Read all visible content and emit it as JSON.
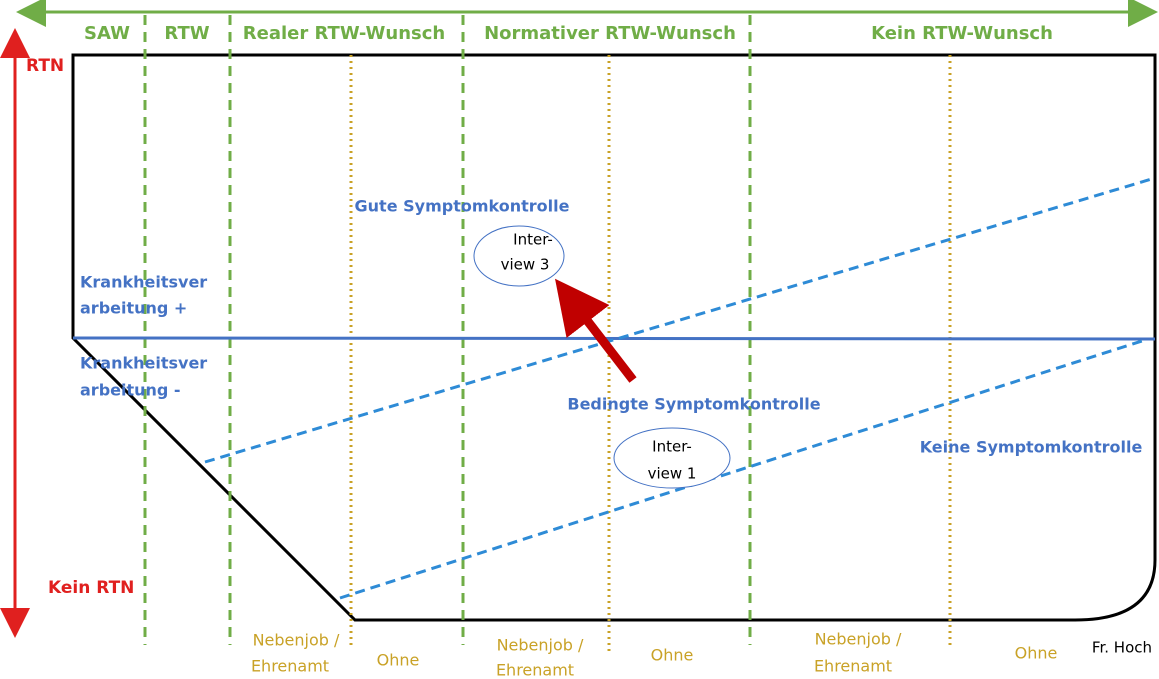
{
  "columns": [
    "SAW",
    "RTW",
    "Realer RTW-Wunsch",
    "Normativer RTW-Wunsch",
    "Kein RTW-Wunsch"
  ],
  "axis": {
    "top": "RTN",
    "bottom": "Kein RTN"
  },
  "regions": [
    {
      "lines": [
        "Krankheitsver",
        "arbeitung +"
      ]
    },
    {
      "lines": [
        "Krankheitsver",
        "arbeitung -"
      ]
    }
  ],
  "zones": [
    "Gute Symptomkontrolle",
    "Bedingte Symptomkontrolle",
    "Keine Symptomkontrolle"
  ],
  "interviews": [
    {
      "lines": [
        "Inter-",
        "view 3"
      ]
    },
    {
      "lines": [
        "Inter-",
        "view 1"
      ]
    }
  ],
  "subcolumns": [
    {
      "lines": [
        "Nebenjob /",
        "Ehrenamt"
      ]
    },
    {
      "lines": [
        "Ohne"
      ]
    },
    {
      "lines": [
        "Nebenjob /",
        "Ehrenamt"
      ]
    },
    {
      "lines": [
        "Ohne"
      ]
    },
    {
      "lines": [
        "Nebenjob /",
        "Ehrenamt"
      ]
    },
    {
      "lines": [
        "Ohne"
      ]
    }
  ],
  "credit": "Fr. Hoch"
}
